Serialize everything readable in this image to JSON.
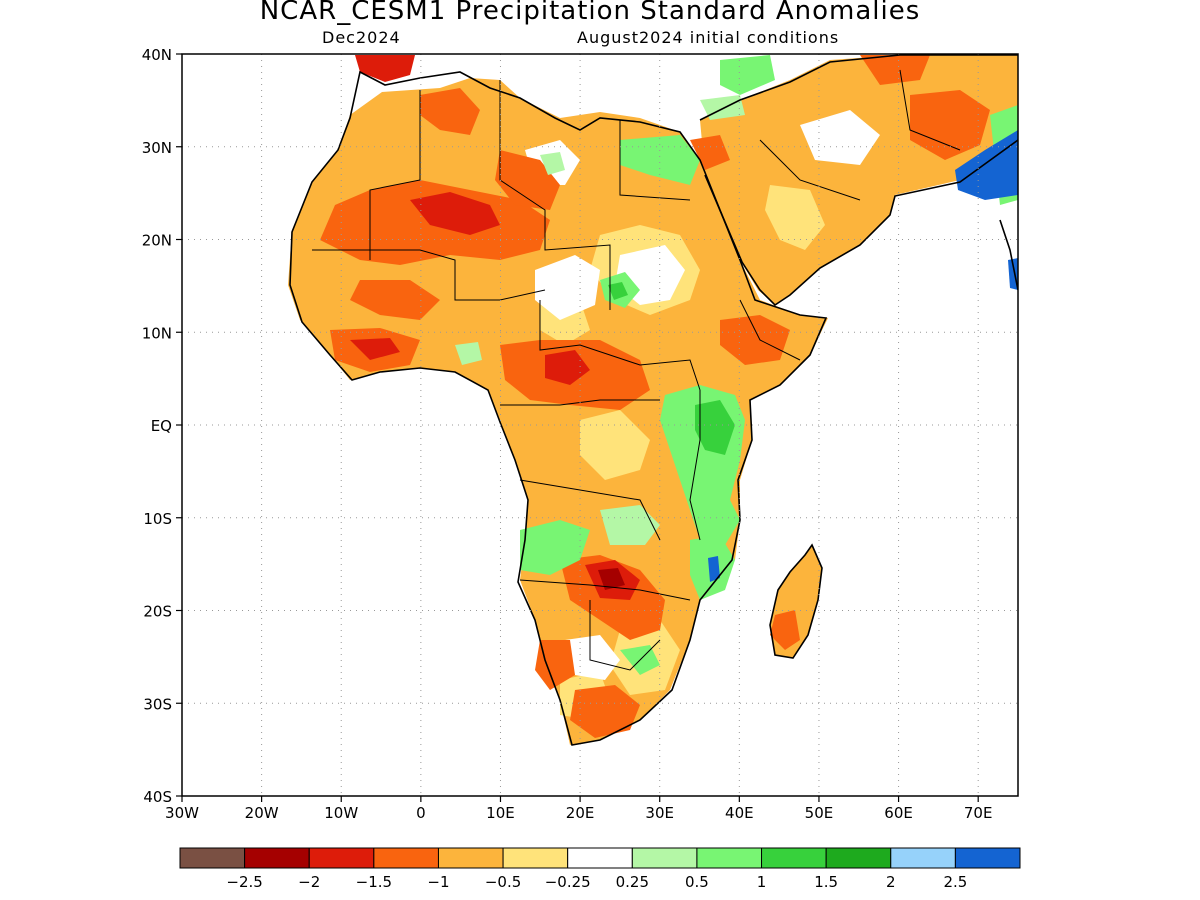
{
  "title": "NCAR_CESM1 Precipitation Standard Anomalies",
  "subtitle_left": "Dec2024",
  "subtitle_right": "August2024 initial conditions",
  "lat_ticks": [
    {
      "label": "40N",
      "lat": 40
    },
    {
      "label": "30N",
      "lat": 30
    },
    {
      "label": "20N",
      "lat": 20
    },
    {
      "label": "10N",
      "lat": 10
    },
    {
      "label": "EQ",
      "lat": 0
    },
    {
      "label": "10S",
      "lat": -10
    },
    {
      "label": "20S",
      "lat": -20
    },
    {
      "label": "30S",
      "lat": -30
    },
    {
      "label": "40S",
      "lat": -40
    }
  ],
  "lon_ticks": [
    {
      "label": "30W",
      "lon": -30
    },
    {
      "label": "20W",
      "lon": -20
    },
    {
      "label": "10W",
      "lon": -10
    },
    {
      "label": "0",
      "lon": 0
    },
    {
      "label": "10E",
      "lon": 10
    },
    {
      "label": "20E",
      "lon": 20
    },
    {
      "label": "30E",
      "lon": 30
    },
    {
      "label": "40E",
      "lon": 40
    },
    {
      "label": "50E",
      "lon": 50
    },
    {
      "label": "60E",
      "lon": 60
    },
    {
      "label": "70E",
      "lon": 70
    }
  ],
  "extent": {
    "lon_min": -30,
    "lon_max": 75,
    "lat_min": -40,
    "lat_max": 40
  },
  "colorbar": {
    "colors": [
      "#7a5043",
      "#a50000",
      "#dd1c0a",
      "#f9640f",
      "#fcb43c",
      "#ffe37a",
      "#ffffff",
      "#b4f7a6",
      "#78f573",
      "#37d13c",
      "#1eaa1e",
      "#96d2fa",
      "#1464d2"
    ],
    "labels": [
      "−2.5",
      "−2",
      "−1.5",
      "−1",
      "−0.5",
      "−0.25",
      "0.25",
      "0.5",
      "1",
      "1.5",
      "2",
      "2.5"
    ]
  }
}
